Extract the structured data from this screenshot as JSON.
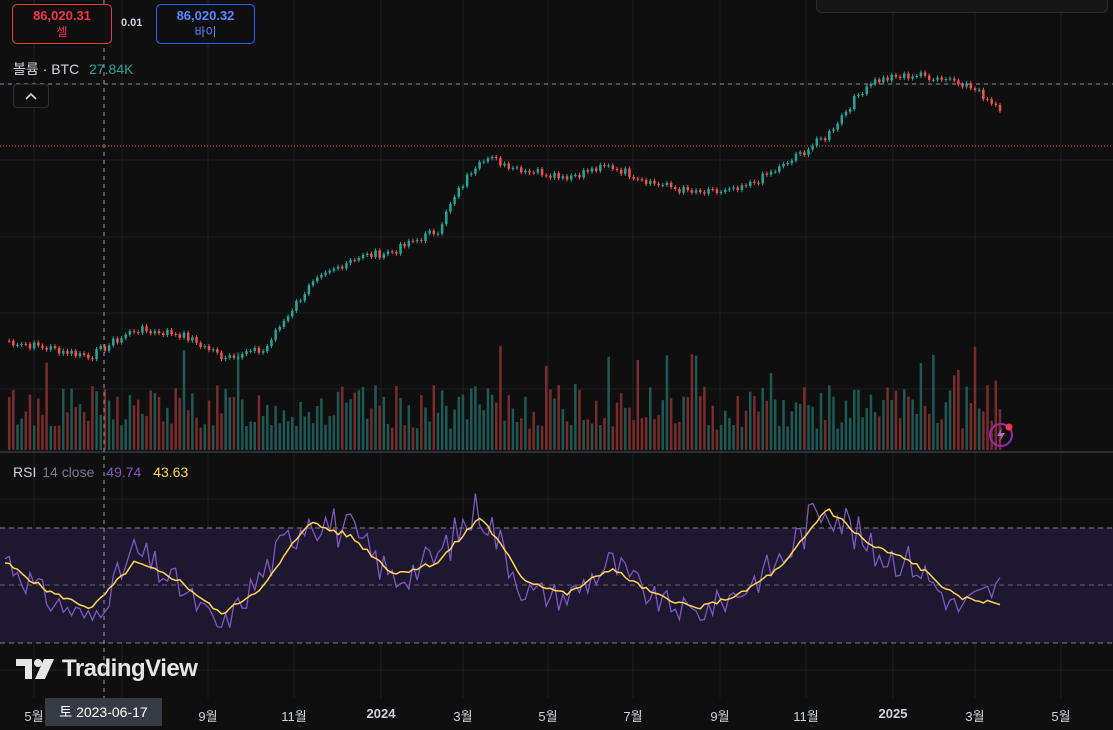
{
  "order_panel": {
    "sell_price": "86,020.31",
    "sell_label": "셀",
    "spread": "0.01",
    "buy_price": "86,020.32",
    "buy_label": "바이"
  },
  "volume_legend": {
    "title": "볼륨 · BTC",
    "value": "27.84K"
  },
  "rsi_legend": {
    "name": "RSI",
    "params": "14 close",
    "rsi_value": "49.74",
    "ma_value": "43.63"
  },
  "crosshair": {
    "date_label": "토 2023-06-17"
  },
  "x_axis": {
    "labels": [
      {
        "text": "5월",
        "bold": false
      },
      {
        "text": "9월",
        "bold": false
      },
      {
        "text": "11월",
        "bold": false
      },
      {
        "text": "2024",
        "bold": true
      },
      {
        "text": "3월",
        "bold": false
      },
      {
        "text": "5월",
        "bold": false
      },
      {
        "text": "7월",
        "bold": false
      },
      {
        "text": "9월",
        "bold": false
      },
      {
        "text": "11월",
        "bold": false
      },
      {
        "text": "2025",
        "bold": true
      },
      {
        "text": "3월",
        "bold": false
      },
      {
        "text": "5월",
        "bold": false
      }
    ]
  },
  "branding": {
    "logo_text": "TradingView"
  },
  "colors": {
    "up": "#26a69a",
    "down": "#ef5350",
    "rsi": "#7e57c2",
    "rsi_ma": "#ffd54f",
    "sell": "#f23645",
    "buy": "#2962ff"
  },
  "chart_data": {
    "type": "candlestick",
    "price_series": {
      "name": "BTC",
      "x": [
        "2023-04",
        "2023-05",
        "2023-06",
        "2023-07",
        "2023-08",
        "2023-09",
        "2023-10",
        "2023-11",
        "2023-12",
        "2024-01",
        "2024-02",
        "2024-03",
        "2024-04",
        "2024-05",
        "2024-06",
        "2024-07",
        "2024-08",
        "2024-09",
        "2024-10",
        "2024-11",
        "2024-12",
        "2025-01",
        "2025-02",
        "2025-03"
      ],
      "y": [
        28500,
        27500,
        26500,
        30000,
        29500,
        26500,
        27200,
        36500,
        42000,
        43500,
        48000,
        68000,
        64000,
        62000,
        65000,
        60000,
        57000,
        58000,
        65000,
        75000,
        97000,
        100000,
        98000,
        86020
      ]
    },
    "rsi_series": {
      "name": "RSI",
      "x": [
        "2023-04",
        "2023-05",
        "2023-06",
        "2023-07",
        "2023-08",
        "2023-09",
        "2023-10",
        "2023-11",
        "2023-12",
        "2024-01",
        "2024-02",
        "2024-03",
        "2024-04",
        "2024-05",
        "2024-06",
        "2024-07",
        "2024-08",
        "2024-09",
        "2024-10",
        "2024-11",
        "2024-12",
        "2025-01",
        "2025-02",
        "2025-03"
      ],
      "y": [
        60,
        45,
        38,
        62,
        50,
        35,
        55,
        75,
        68,
        52,
        60,
        78,
        48,
        46,
        58,
        45,
        40,
        48,
        60,
        80,
        62,
        58,
        42,
        49.74
      ]
    },
    "rsi_ma_series": {
      "name": "RSI MA",
      "x": [
        "2023-04",
        "2023-05",
        "2023-06",
        "2023-07",
        "2023-08",
        "2023-09",
        "2023-10",
        "2023-11",
        "2023-12",
        "2024-01",
        "2024-02",
        "2024-03",
        "2024-04",
        "2024-05",
        "2024-06",
        "2024-07",
        "2024-08",
        "2024-09",
        "2024-10",
        "2024-11",
        "2024-12",
        "2025-01",
        "2025-02",
        "2025-03"
      ],
      "y": [
        58,
        48,
        42,
        58,
        52,
        40,
        50,
        72,
        67,
        54,
        58,
        74,
        52,
        47,
        56,
        47,
        42,
        47,
        57,
        77,
        64,
        58,
        46,
        43.63
      ]
    },
    "rsi_levels": [
      70,
      50,
      30
    ],
    "grid": true
  }
}
